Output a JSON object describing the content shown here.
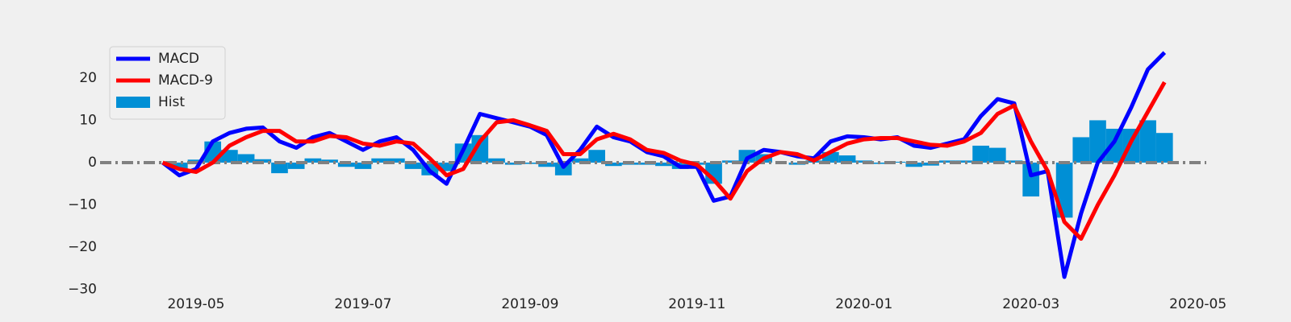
{
  "chart_data": {
    "type": "line",
    "x": [
      3.6,
      3.8,
      4.0,
      4.2,
      4.4,
      4.6,
      4.8,
      5.0,
      5.2,
      5.4,
      5.6,
      5.8,
      6.0,
      6.2,
      6.4,
      6.6,
      6.8,
      7.0,
      7.2,
      7.4,
      7.6,
      7.8,
      8.0,
      8.2,
      8.4,
      8.6,
      8.8,
      9.0,
      9.2,
      9.4,
      9.6,
      9.8,
      10.0,
      10.2,
      10.4,
      10.6,
      10.8,
      11.0,
      11.2,
      11.4,
      11.6,
      11.8,
      12.0,
      12.2,
      12.4,
      12.6,
      12.8,
      13.0,
      13.2,
      13.4,
      13.6,
      13.8,
      14.0,
      14.2,
      14.4,
      14.6,
      14.8,
      15.0,
      15.2,
      15.4,
      15.6
    ],
    "series": [
      {
        "name": "MACD",
        "type": "line",
        "color": "#0000ff",
        "values": [
          0,
          -3,
          -1.5,
          5,
          7,
          8,
          8.3,
          5,
          3.5,
          6,
          7,
          5,
          3,
          5,
          6,
          3,
          -2,
          -5,
          3,
          11.5,
          10.5,
          9.5,
          8.5,
          6.5,
          -1,
          3,
          8.5,
          6,
          5,
          2.5,
          1.5,
          -1,
          -1,
          -9,
          -8,
          1,
          3,
          2.5,
          1.5,
          1,
          5,
          6.2,
          6,
          5.5,
          6,
          4,
          3.5,
          4.5,
          5.5,
          11,
          15,
          14,
          -3,
          -2,
          -27,
          -12,
          0,
          5,
          13,
          22,
          26
        ]
      },
      {
        "name": "MACD-9",
        "type": "line",
        "color": "#ff0000",
        "values": [
          0,
          -1.5,
          -2.2,
          0,
          4,
          6,
          7.5,
          7.5,
          5,
          5,
          6.3,
          6,
          4.5,
          4,
          5,
          4.5,
          1,
          -3,
          -1.5,
          5,
          9.5,
          10,
          8.8,
          7.5,
          2,
          2,
          5.5,
          6.8,
          5.5,
          3,
          2.3,
          0.5,
          -0.5,
          -4,
          -8.5,
          -2,
          1,
          2.5,
          2,
          0.5,
          2.5,
          4.5,
          5.5,
          5.8,
          5.8,
          5,
          4.2,
          4,
          5,
          7,
          11.5,
          13.5,
          5,
          -2,
          -14,
          -18,
          -10,
          -3,
          5,
          12,
          19
        ]
      },
      {
        "name": "Hist",
        "type": "bar",
        "color": "#008fd5",
        "values": [
          0,
          -1.5,
          0.7,
          5,
          3,
          2,
          0.8,
          -2.5,
          -1.5,
          1,
          0.7,
          -1,
          -1.5,
          1,
          1,
          -1.5,
          -3,
          -2,
          4.5,
          6.5,
          1,
          -0.5,
          -0.3,
          -1,
          -3,
          1,
          3,
          -0.8,
          -0.5,
          -0.5,
          -0.8,
          -1.5,
          -0.5,
          -5,
          0.5,
          3,
          2,
          0,
          -0.5,
          0.5,
          2.5,
          1.7,
          0.5,
          -0.3,
          0.2,
          -1,
          -0.7,
          0.5,
          0.5,
          4,
          3.5,
          0.5,
          -8,
          0,
          -13,
          6,
          10,
          8,
          8,
          10,
          7
        ]
      }
    ],
    "xlim": [
      2.85,
      16.1
    ],
    "xticks": [
      {
        "value": 4,
        "label": "2019-05"
      },
      {
        "value": 6,
        "label": "2019-07"
      },
      {
        "value": 8,
        "label": "2019-09"
      },
      {
        "value": 10,
        "label": "2019-11"
      },
      {
        "value": 12,
        "label": "2020-01"
      },
      {
        "value": 14,
        "label": "2020-03"
      },
      {
        "value": 16,
        "label": "2020-05"
      }
    ],
    "ylim": [
      -31,
      31
    ],
    "yticks": [
      {
        "value": -30,
        "label": "−30"
      },
      {
        "value": -20,
        "label": "−20"
      },
      {
        "value": -10,
        "label": "−10"
      },
      0,
      10,
      20
    ],
    "hline": 0,
    "hline_color": "#808080",
    "legend": "upper left",
    "bar_width": 0.2
  }
}
